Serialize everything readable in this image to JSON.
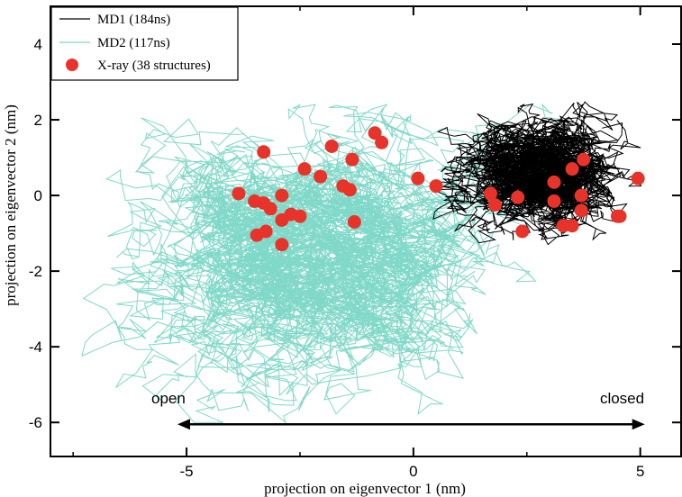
{
  "chart_data": {
    "type": "scatter",
    "title": "",
    "xlabel": "projection on eigenvector 1 (nm)",
    "ylabel": "projection on eigenvector 2 (nm)",
    "xlim": [
      -8,
      5.9
    ],
    "ylim": [
      -6.9,
      5
    ],
    "x_ticks": [
      -5,
      0,
      5
    ],
    "y_ticks": [
      -6,
      -4,
      -2,
      0,
      2,
      4
    ],
    "x_tick_labels": [
      "-5",
      "0",
      "5"
    ],
    "y_tick_labels": [
      "-6",
      "-4",
      "-2",
      "0",
      "2",
      "4"
    ],
    "grid": false,
    "legend_position": "top-left",
    "series": [
      {
        "name": "MD1 (184ns)",
        "kind": "line",
        "color": "#000000",
        "region": {
          "x_range": [
            -0.9,
            5.5
          ],
          "y_range": [
            -2.2,
            4.0
          ],
          "center": [
            3.0,
            0.8
          ]
        }
      },
      {
        "name": "MD2 (117ns)",
        "kind": "line",
        "color": "#7fd8c8",
        "region": {
          "x_range": [
            -7.5,
            4.2
          ],
          "y_range": [
            -6.0,
            2.4
          ],
          "center": [
            -1.5,
            -1.2
          ]
        }
      },
      {
        "name": "X-ray (38 structures)",
        "kind": "scatter",
        "color": "#e8332a",
        "points": [
          [
            -3.3,
            1.15
          ],
          [
            -3.85,
            0.05
          ],
          [
            -3.5,
            -0.15
          ],
          [
            -3.3,
            -0.2
          ],
          [
            -3.15,
            -0.35
          ],
          [
            -2.9,
            0.0
          ],
          [
            -2.9,
            -0.65
          ],
          [
            -2.7,
            -0.5
          ],
          [
            -2.5,
            -0.55
          ],
          [
            -3.25,
            -0.95
          ],
          [
            -3.45,
            -1.05
          ],
          [
            -2.9,
            -1.3
          ],
          [
            -2.4,
            0.7
          ],
          [
            -2.05,
            0.5
          ],
          [
            -1.8,
            1.3
          ],
          [
            -1.35,
            0.95
          ],
          [
            -1.55,
            0.25
          ],
          [
            -1.4,
            0.15
          ],
          [
            -1.3,
            -0.7
          ],
          [
            -0.85,
            1.65
          ],
          [
            -0.7,
            1.4
          ],
          [
            0.1,
            0.45
          ],
          [
            0.5,
            0.25
          ],
          [
            1.7,
            0.05
          ],
          [
            1.8,
            -0.25
          ],
          [
            2.3,
            -0.05
          ],
          [
            2.4,
            -0.95
          ],
          [
            3.1,
            0.35
          ],
          [
            3.1,
            -0.15
          ],
          [
            3.5,
            0.7
          ],
          [
            3.75,
            0.95
          ],
          [
            3.7,
            0.0
          ],
          [
            3.7,
            -0.4
          ],
          [
            3.5,
            -0.8
          ],
          [
            3.3,
            -0.8
          ],
          [
            4.5,
            -0.55
          ],
          [
            4.55,
            -0.55
          ],
          [
            4.95,
            0.45
          ]
        ]
      }
    ],
    "annotations": [
      {
        "text": "open",
        "x": -5.4,
        "y": -5.5
      },
      {
        "text": "closed",
        "x": 4.6,
        "y": -5.5
      }
    ],
    "arrow": {
      "from": [
        -5.2,
        -6.05
      ],
      "to": [
        5.1,
        -6.05
      ]
    }
  },
  "legend": {
    "md1": "MD1 (184ns)",
    "md2": "MD2 (117ns)",
    "xray": "X-ray (38 structures)"
  }
}
